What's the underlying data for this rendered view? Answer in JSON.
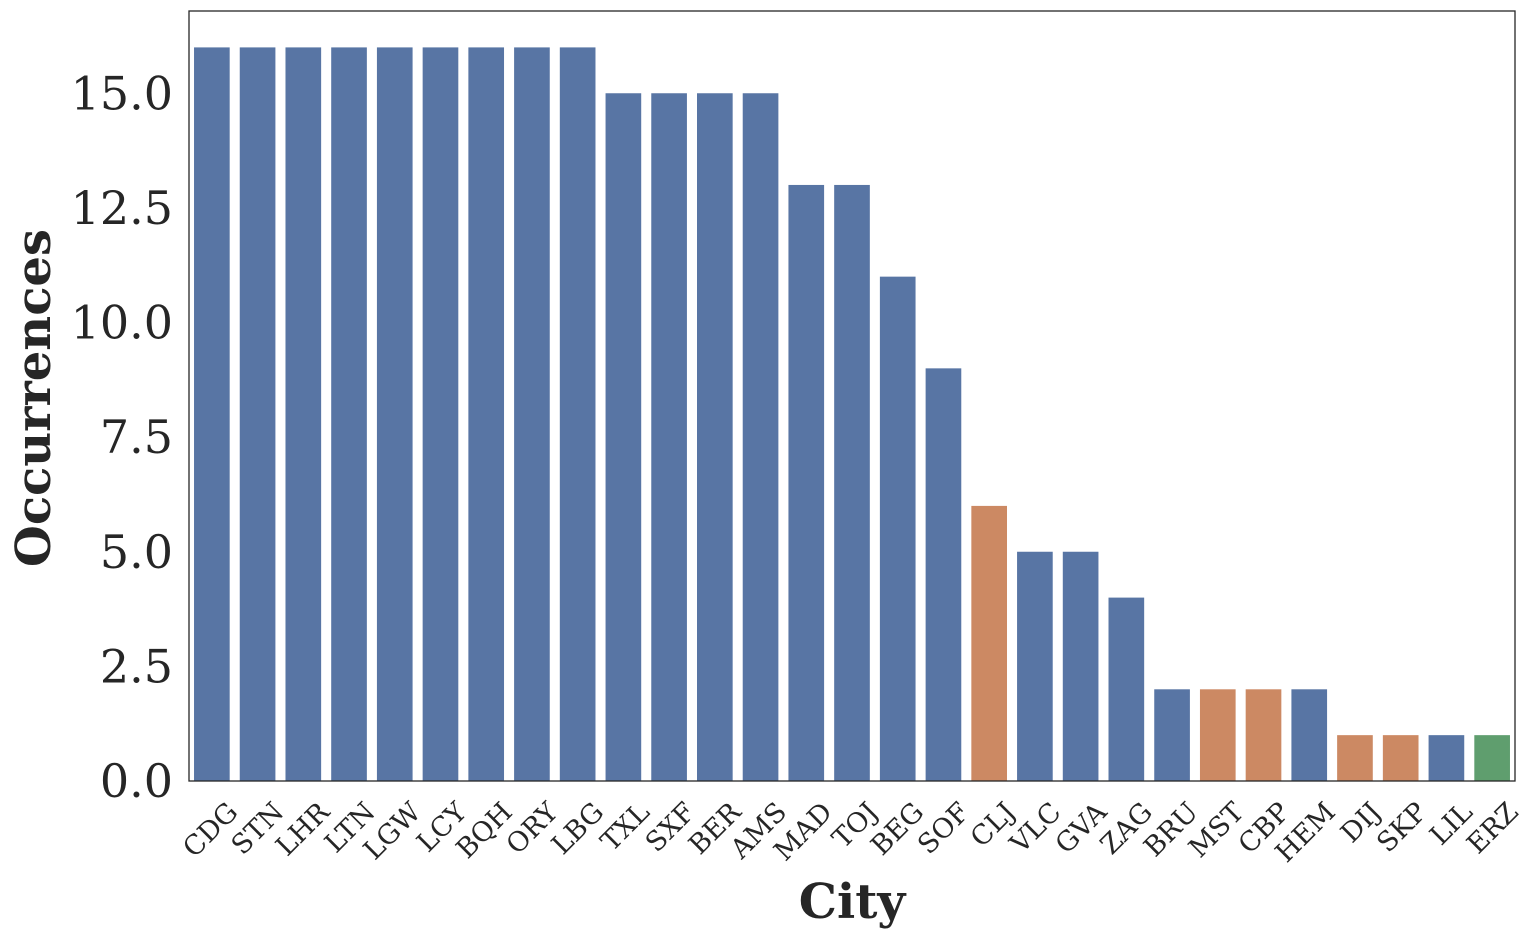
{
  "chart_data": {
    "type": "bar",
    "xlabel": "City",
    "ylabel": "Occurrences",
    "ylim": [
      0,
      16.8
    ],
    "yticks": [
      "0.0",
      "2.5",
      "5.0",
      "7.5",
      "10.0",
      "12.5",
      "15.0"
    ],
    "grid": false,
    "categories": [
      "CDG",
      "STN",
      "LHR",
      "LTN",
      "LGW",
      "LCY",
      "BQH",
      "ORY",
      "LBG",
      "TXL",
      "SXF",
      "BER",
      "AMS",
      "MAD",
      "TOJ",
      "BEG",
      "SOF",
      "CLJ",
      "VLC",
      "GVA",
      "ZAG",
      "BRU",
      "MST",
      "CBP",
      "HEM",
      "DIJ",
      "SKP",
      "LIL",
      "ERZ"
    ],
    "values": [
      16,
      16,
      16,
      16,
      16,
      16,
      16,
      16,
      16,
      15,
      15,
      15,
      15,
      13,
      13,
      11,
      9,
      6,
      5,
      5,
      4,
      2,
      2,
      2,
      2,
      1,
      1,
      1,
      1
    ],
    "bar_colors": [
      "#5875a4",
      "#5875a4",
      "#5875a4",
      "#5875a4",
      "#5875a4",
      "#5875a4",
      "#5875a4",
      "#5875a4",
      "#5875a4",
      "#5875a4",
      "#5875a4",
      "#5875a4",
      "#5875a4",
      "#5875a4",
      "#5875a4",
      "#5875a4",
      "#5875a4",
      "#cc8963",
      "#5875a4",
      "#5875a4",
      "#5875a4",
      "#5875a4",
      "#cc8963",
      "#cc8963",
      "#5875a4",
      "#cc8963",
      "#cc8963",
      "#5875a4",
      "#5f9e6e"
    ]
  }
}
